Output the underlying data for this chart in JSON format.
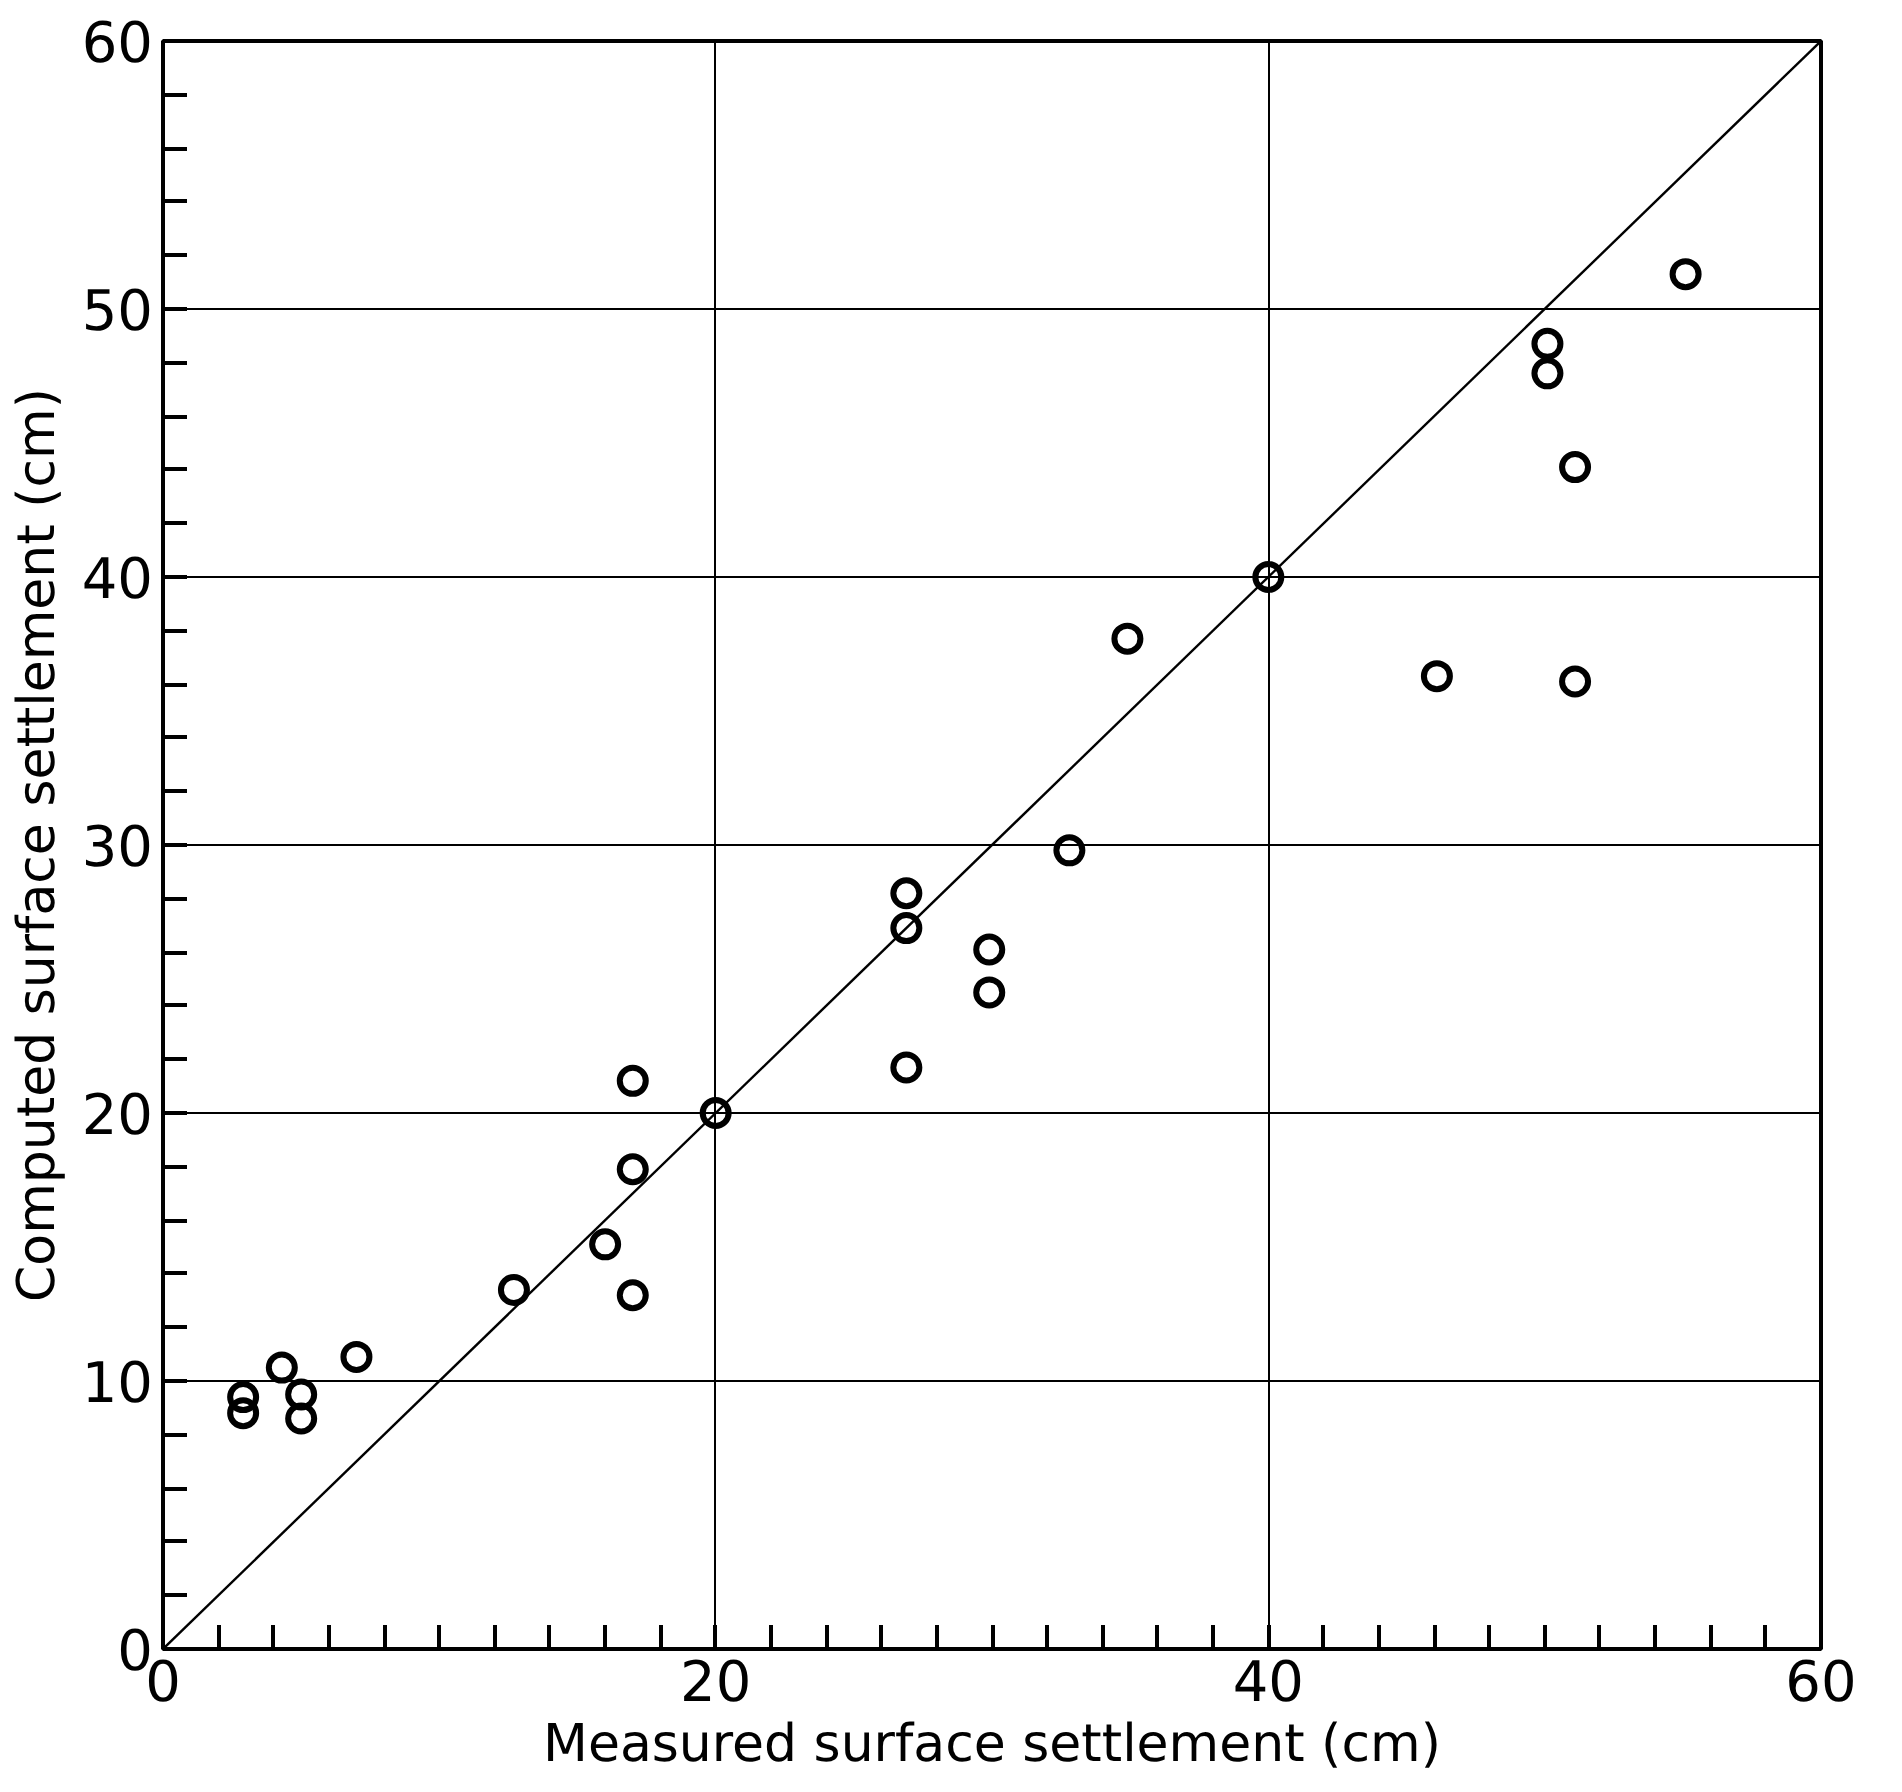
{
  "chart_data": {
    "type": "scatter",
    "xlabel": "Measured surface settlement (cm)",
    "ylabel": "Computed surface settlement (cm)",
    "xlim": [
      0,
      60
    ],
    "ylim": [
      0,
      60
    ],
    "xticks": [
      0,
      {
        "value": 2,
        "label": null
      },
      {
        "value": 4,
        "label": null
      },
      {
        "value": 6,
        "label": null
      },
      {
        "value": 8,
        "label": null
      },
      {
        "value": 10,
        "label": null
      },
      {
        "value": 12,
        "label": null
      },
      {
        "value": 14,
        "label": null
      },
      {
        "value": 16,
        "label": null
      },
      {
        "value": 18,
        "label": null
      },
      20,
      {
        "value": 22,
        "label": null
      },
      {
        "value": 24,
        "label": null
      },
      {
        "value": 26,
        "label": null
      },
      {
        "value": 28,
        "label": null
      },
      {
        "value": 30,
        "label": null
      },
      {
        "value": 32,
        "label": null
      },
      {
        "value": 34,
        "label": null
      },
      {
        "value": 36,
        "label": null
      },
      {
        "value": 38,
        "label": null
      },
      40,
      {
        "value": 42,
        "label": null
      },
      {
        "value": 44,
        "label": null
      },
      {
        "value": 46,
        "label": null
      },
      {
        "value": 48,
        "label": null
      },
      {
        "value": 50,
        "label": null
      },
      {
        "value": 52,
        "label": null
      },
      {
        "value": 54,
        "label": null
      },
      {
        "value": 56,
        "label": null
      },
      {
        "value": 58,
        "label": null
      },
      60
    ],
    "yticks": [
      0,
      {
        "value": 2,
        "label": null
      },
      {
        "value": 4,
        "label": null
      },
      {
        "value": 6,
        "label": null
      },
      {
        "value": 8,
        "label": null
      },
      10,
      {
        "value": 12,
        "label": null
      },
      {
        "value": 14,
        "label": null
      },
      {
        "value": 16,
        "label": null
      },
      {
        "value": 18,
        "label": null
      },
      20,
      {
        "value": 22,
        "label": null
      },
      {
        "value": 24,
        "label": null
      },
      {
        "value": 26,
        "label": null
      },
      {
        "value": 28,
        "label": null
      },
      30,
      {
        "value": 32,
        "label": null
      },
      {
        "value": 34,
        "label": null
      },
      {
        "value": 36,
        "label": null
      },
      {
        "value": 38,
        "label": null
      },
      40,
      {
        "value": 42,
        "label": null
      },
      {
        "value": 44,
        "label": null
      },
      {
        "value": 46,
        "label": null
      },
      {
        "value": 48,
        "label": null
      },
      50,
      {
        "value": 52,
        "label": null
      },
      {
        "value": 54,
        "label": null
      },
      {
        "value": 56,
        "label": null
      },
      {
        "value": 58,
        "label": null
      },
      60
    ],
    "grid": true,
    "marker": "circle",
    "series": [
      {
        "color": "#000000",
        "x": [
          2.9,
          2.9,
          4.3,
          5.0,
          5.0,
          7.0,
          12.7,
          16.0,
          17.0,
          17.0,
          17.0,
          20.0,
          26.9,
          26.9,
          26.9,
          29.9,
          29.9,
          32.8,
          34.9,
          40.0,
          46.1,
          50.1,
          50.1,
          51.1,
          51.1,
          55.1
        ],
        "values": [
          9.4,
          8.8,
          10.5,
          9.5,
          8.6,
          10.9,
          13.4,
          15.1,
          17.9,
          13.2,
          21.2,
          20.0,
          28.2,
          26.9,
          21.7,
          26.1,
          24.5,
          29.8,
          37.7,
          40.0,
          36.3,
          48.7,
          47.6,
          44.1,
          36.1,
          51.3
        ]
      },
      {
        "type": "line",
        "color": "#000000",
        "x": [
          0,
          60
        ],
        "values": [
          0,
          60
        ],
        "marker": "none",
        "line_style": "solid"
      }
    ]
  }
}
